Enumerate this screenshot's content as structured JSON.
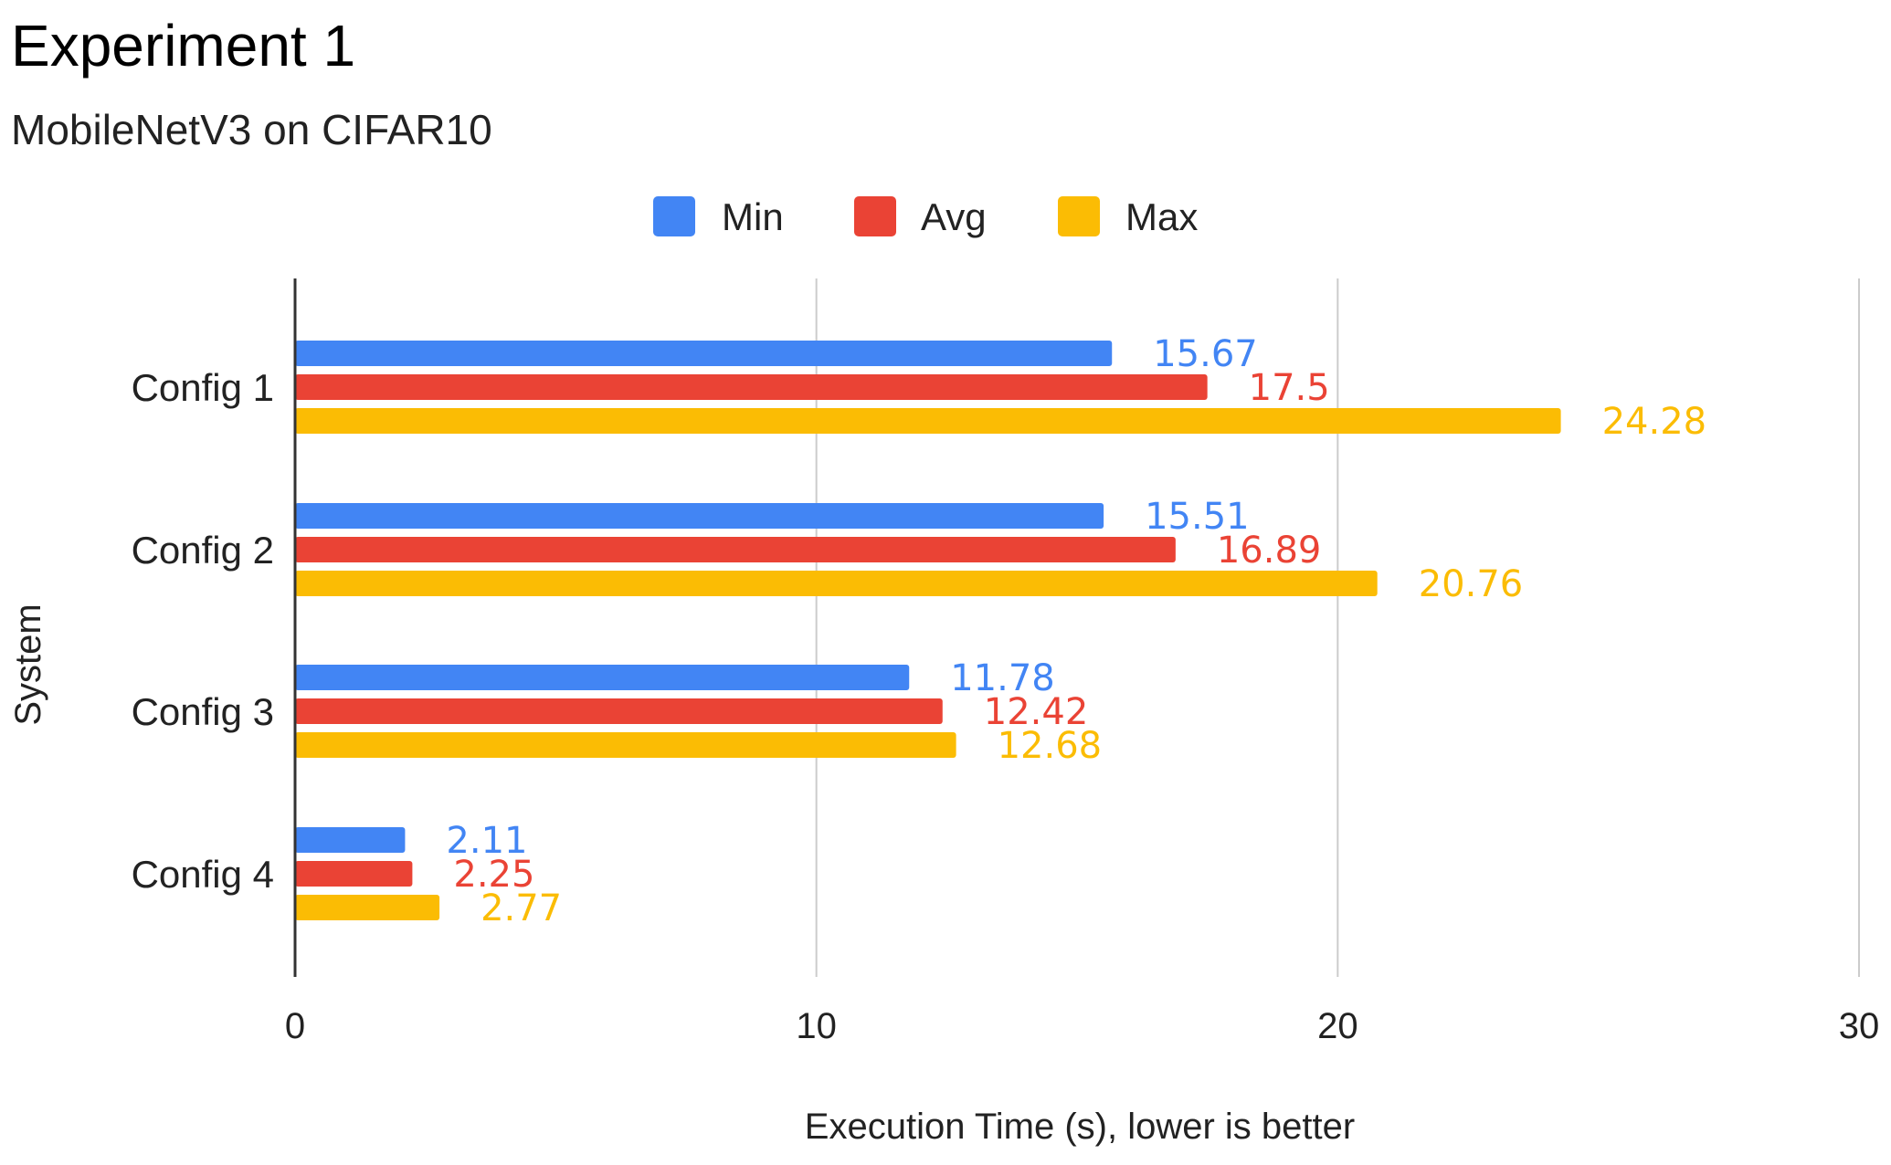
{
  "chart_data": {
    "type": "bar",
    "orientation": "horizontal",
    "title": "Experiment 1",
    "subtitle": "MobileNetV3 on CIFAR10",
    "xlabel": "Execution Time (s), lower is better",
    "ylabel": "System",
    "xlim": [
      0,
      30
    ],
    "xticks": [
      0,
      10,
      20,
      30
    ],
    "grid": true,
    "legend_position": "top-center",
    "categories": [
      "Config 1",
      "Config 2",
      "Config 3",
      "Config 4"
    ],
    "series": [
      {
        "name": "Min",
        "color": "#4285F4",
        "values": [
          15.67,
          15.51,
          11.78,
          2.11
        ],
        "labels": [
          "15.67",
          "15.51",
          "11.78",
          "2.11"
        ]
      },
      {
        "name": "Avg",
        "color": "#EA4335",
        "values": [
          17.5,
          16.89,
          12.42,
          2.25
        ],
        "labels": [
          "17.5",
          "16.89",
          "12.42",
          "2.25"
        ]
      },
      {
        "name": "Max",
        "color": "#FBBC04",
        "values": [
          24.28,
          20.76,
          12.68,
          2.77
        ],
        "labels": [
          "24.28",
          "20.76",
          "12.68",
          "2.77"
        ]
      }
    ],
    "gridline_color": "#cccccc",
    "axis_color": "#333333"
  }
}
